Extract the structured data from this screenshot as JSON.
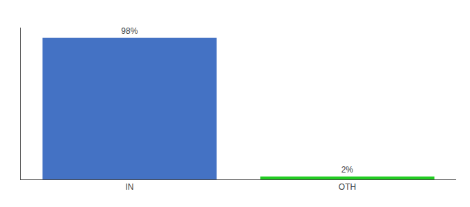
{
  "chart_data": {
    "type": "bar",
    "categories": [
      "IN",
      "OTH"
    ],
    "values": [
      98,
      2
    ],
    "value_labels": [
      "98%",
      "2%"
    ],
    "colors": [
      "#4472c4",
      "#22cc22"
    ],
    "data_labels": true,
    "ylim": [
      0,
      105
    ],
    "tick_labels": "x",
    "grid": false
  }
}
